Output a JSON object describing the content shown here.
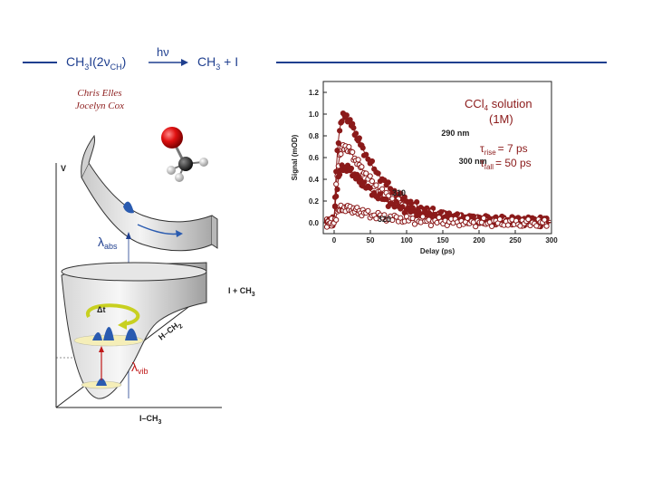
{
  "reaction": {
    "reactant_base": "CH",
    "reactant_sub1": "3",
    "reactant_mid": "I(2ν",
    "reactant_sub2": "CH",
    "reactant_end": ")",
    "photon": "hν",
    "product_base": "CH",
    "product_sub": "3",
    "product_rest": " + I",
    "line_color": "#1f3f8f"
  },
  "authors": [
    "Chris Elles",
    "Jocelyn Cox"
  ],
  "pes": {
    "v_label": "V",
    "lambda_abs": "λ",
    "lambda_abs_sub": "abs",
    "lambda_vib": "λ",
    "lambda_vib_sub": "vib",
    "dt_label": "Δt",
    "dissoc_label": "I + CH",
    "dissoc_sub": "3",
    "x_axis_label": "I–CH",
    "x_axis_sub": "3",
    "diag_axis_label": "H–CH",
    "diag_axis_sub": "2"
  },
  "chart_data": {
    "type": "scatter",
    "xlabel": "Delay (ps)",
    "ylabel": "Signal (mOD)",
    "xlim": [
      -15,
      300
    ],
    "ylim": [
      -0.1,
      1.3
    ],
    "xticks": [
      0,
      50,
      100,
      150,
      200,
      250,
      300
    ],
    "yticks": [
      0.0,
      0.2,
      0.4,
      0.6,
      0.8,
      1.0,
      1.2
    ],
    "ytick_labels": [
      "0.0",
      "0.2",
      "0.4",
      "0.6",
      "0.8",
      "1.0",
      "1.2"
    ],
    "legend_title": "CCl",
    "legend_title_sub": "4",
    "legend_title_rest": " solution",
    "legend_conc": "(1M)",
    "tau_rise": "= 7 ps",
    "tau_fall": "= 50 ps",
    "tau_symbol": "τ",
    "tau_rise_sub": "rise",
    "tau_fall_sub": "fall",
    "tau_rise_ps": 7,
    "tau_fall_ps": 50,
    "series": [
      {
        "name": "290 nm",
        "amplitude": 1.24,
        "offset": 0.0,
        "filled": true,
        "label_pos": [
          148,
          0.8
        ]
      },
      {
        "name": "300 nm",
        "amplitude": 0.88,
        "offset": 0.0,
        "filled": false,
        "label_pos": [
          172,
          0.54
        ]
      },
      {
        "name": "310",
        "amplitude": 0.62,
        "offset": 0.02,
        "filled": true,
        "label_pos": [
          80,
          0.25
        ]
      },
      {
        "name": "320",
        "amplitude": 0.17,
        "offset": 0.0,
        "filled": false,
        "label_pos": [
          60,
          0.01
        ]
      }
    ],
    "marker_color": "#8b1a1a"
  }
}
